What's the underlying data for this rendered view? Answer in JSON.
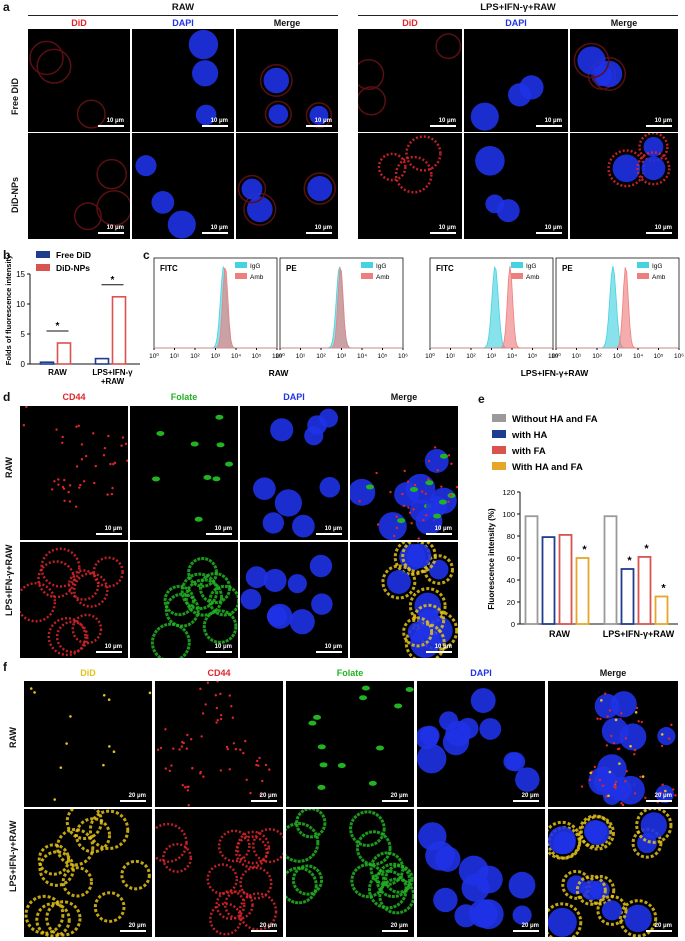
{
  "panel_a": {
    "label": "a",
    "groups": [
      "RAW",
      "LPS+IFN-γ+RAW"
    ],
    "channels": [
      "DiD",
      "DAPI",
      "Merge"
    ],
    "rows": [
      "Free DiD",
      "DiD-NPs"
    ],
    "scalebar": "10 μm"
  },
  "panel_b": {
    "label": "b",
    "chart_data": {
      "type": "bar",
      "categories": [
        "RAW",
        "LPS+IFN-γ +RAW"
      ],
      "series": [
        {
          "name": "Free DiD",
          "values": [
            0.3,
            0.9
          ],
          "color": "#1f3d8f"
        },
        {
          "name": "DiD-NPs",
          "values": [
            3.5,
            11.2
          ],
          "color": "#d9534f"
        }
      ],
      "ylabel": "Folds of fluorescence intensity",
      "ylim": [
        0,
        15
      ],
      "yticks": [
        "0",
        "5",
        "10",
        "15"
      ],
      "significance": [
        "*",
        "*"
      ]
    }
  },
  "panel_c": {
    "label": "c",
    "chart_data": {
      "type": "area",
      "x_scale": "log",
      "xlim": [
        1,
        1000000
      ],
      "xticks": [
        "10⁰",
        "10¹",
        "10²",
        "10³",
        "10⁴",
        "10⁵",
        "10⁶"
      ],
      "legend": [
        "IgG",
        "Amb"
      ],
      "legend_colors": [
        "#46d3e0",
        "#ee7f7f"
      ],
      "plots": [
        {
          "title": "FITC",
          "group": "RAW",
          "IgG_peak": 2500,
          "Amb_peak": 3000
        },
        {
          "title": "PE",
          "group": "RAW",
          "IgG_peak": 800,
          "Amb_peak": 900
        },
        {
          "title": "FITC",
          "group": "LPS+IFN-γ+RAW",
          "IgG_peak": 1500,
          "Amb_peak": 8000
        },
        {
          "title": "PE",
          "group": "LPS+IFN-γ+RAW",
          "IgG_peak": 600,
          "Amb_peak": 2500
        }
      ],
      "group_labels": [
        "RAW",
        "LPS+IFN-γ+RAW"
      ]
    }
  },
  "panel_d": {
    "label": "d",
    "channels": [
      "CD44",
      "Folate",
      "DAPI",
      "Merge"
    ],
    "rows": [
      "RAW",
      "LPS+IFN-γ+RAW"
    ],
    "scalebar": "10 μm"
  },
  "panel_e": {
    "label": "e",
    "chart_data": {
      "type": "bar",
      "categories": [
        "RAW",
        "LPS+IFN-γ+RAW"
      ],
      "series": [
        {
          "name": "Without HA and FA",
          "values": [
            98,
            98
          ],
          "color": "#9a9a9a"
        },
        {
          "name": "with HA",
          "values": [
            79,
            50
          ],
          "color": "#1f3d8f"
        },
        {
          "name": "with FA",
          "values": [
            81,
            61
          ],
          "color": "#d9534f"
        },
        {
          "name": "With HA and FA",
          "values": [
            60,
            25
          ],
          "color": "#e6a52b"
        }
      ],
      "ylabel": "Fluorescence intensity (%)",
      "ylim": [
        0,
        120
      ],
      "yticks": [
        "0",
        "20",
        "40",
        "60",
        "80",
        "100",
        "120"
      ],
      "significance": [
        "*",
        "*",
        "*",
        "*"
      ]
    }
  },
  "panel_f": {
    "label": "f",
    "channels": [
      "DiD",
      "CD44",
      "Folate",
      "DAPI",
      "Merge"
    ],
    "rows": [
      "RAW",
      "LPS+IFN-γ+RAW"
    ],
    "scalebar": "20 μm"
  },
  "colors": {
    "did": "#e0262b",
    "dapi": "#1f32e6",
    "folate": "#22b222",
    "yellow": "#e3c21a"
  }
}
